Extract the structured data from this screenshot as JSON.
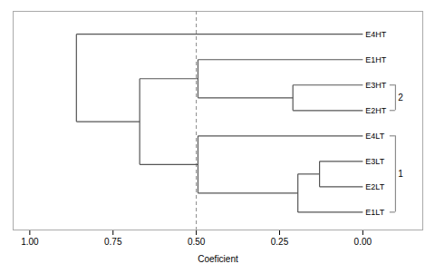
{
  "chart_data": {
    "type": "dendrogram",
    "xlabel": "Coeficient",
    "xlim": [
      1.05,
      -0.18
    ],
    "xticks": [
      {
        "value": 1.0,
        "label": "1.00"
      },
      {
        "value": 0.75,
        "label": "0.75"
      },
      {
        "value": 0.5,
        "label": "0.50"
      },
      {
        "value": 0.25,
        "label": "0.25"
      },
      {
        "value": 0,
        "label": "0.00"
      }
    ],
    "categories": [
      "E1LT",
      "E2LT",
      "E3LT",
      "E4LT",
      "E2HT",
      "E3HT",
      "E1HT",
      "E4HT"
    ],
    "merges": [
      {
        "members": [
          "E2LT",
          "E3LT"
        ],
        "value": 0.13
      },
      {
        "members": [
          "E1LT",
          "E2LT",
          "E3LT"
        ],
        "value": 0.195
      },
      {
        "members": [
          "E1LT",
          "E2LT",
          "E3LT",
          "E4LT"
        ],
        "value": 0.495
      },
      {
        "members": [
          "E2HT",
          "E3HT"
        ],
        "value": 0.21
      },
      {
        "members": [
          "E2HT",
          "E3HT",
          "E1HT"
        ],
        "value": 0.495
      },
      {
        "members": [
          "E1LT",
          "E2LT",
          "E3LT",
          "E4LT",
          "E2HT",
          "E3HT",
          "E1HT"
        ],
        "value": 0.67
      },
      {
        "members": [
          "E1LT",
          "E2LT",
          "E3LT",
          "E4LT",
          "E2HT",
          "E3HT",
          "E1HT",
          "E4HT"
        ],
        "value": 0.86
      }
    ],
    "color": "#555555",
    "cut_line": {
      "value": 0.5,
      "color": "#888888",
      "line_style": "dashed"
    },
    "groups": [
      {
        "label": "1",
        "from": "E1LT",
        "to": "E4LT"
      },
      {
        "label": "2",
        "from": "E2HT",
        "to": "E3HT"
      }
    ]
  }
}
